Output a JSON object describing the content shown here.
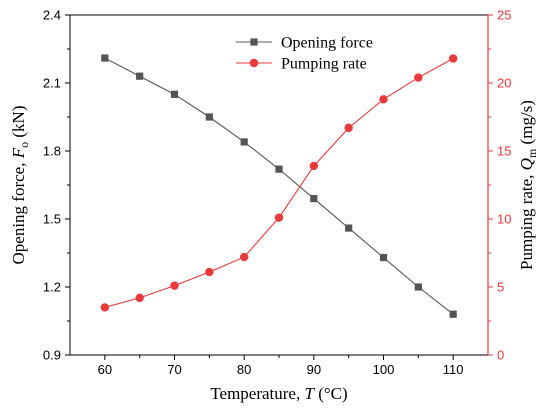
{
  "chart_data": {
    "type": "line",
    "x": [
      60,
      65,
      70,
      75,
      80,
      85,
      90,
      95,
      100,
      105,
      110
    ],
    "xlabel": {
      "main": "Temperature, ",
      "var": "T",
      "unit": " (°C)"
    },
    "xlim": [
      55,
      115
    ],
    "xticks": [
      "60",
      "70",
      "80",
      "90",
      "100",
      "110"
    ],
    "left_axis": {
      "label": {
        "main": "Opening force, ",
        "var": "F",
        "sub": "o",
        "unit": " (kN)"
      },
      "ylim": [
        0.9,
        2.4
      ],
      "ticks": [
        "0.9",
        "1.2",
        "1.5",
        "1.8",
        "2.1",
        "2.4"
      ],
      "color": "#000000"
    },
    "right_axis": {
      "label": {
        "main": "Pumping rate, ",
        "var": "Q",
        "sub": "m",
        "unit": " (mg/s)"
      },
      "ylim": [
        0,
        25
      ],
      "ticks": [
        "0",
        "5",
        "10",
        "15",
        "20",
        "25"
      ],
      "color": "#e8393b"
    },
    "series": [
      {
        "name": "Opening force",
        "axis": "left",
        "marker": "square",
        "color": "#555555",
        "values": [
          2.21,
          2.13,
          2.05,
          1.95,
          1.84,
          1.72,
          1.59,
          1.46,
          1.33,
          1.2,
          1.08
        ]
      },
      {
        "name": "Pumping rate",
        "axis": "right",
        "marker": "circle",
        "color": "#e8393b",
        "values": [
          3.5,
          4.2,
          5.1,
          6.1,
          7.2,
          10.1,
          13.9,
          16.7,
          18.8,
          20.4,
          21.8
        ]
      }
    ],
    "legend": {
      "position": "top-center"
    }
  }
}
